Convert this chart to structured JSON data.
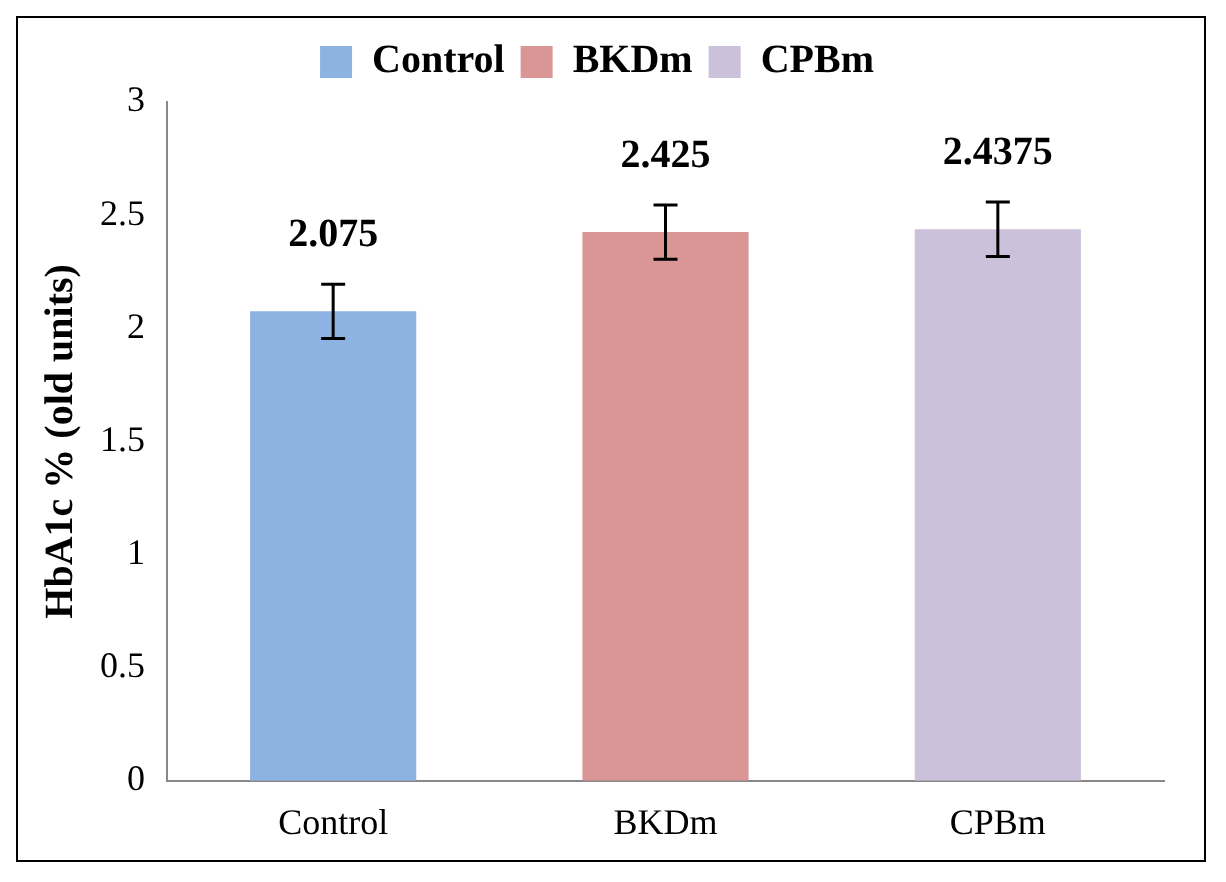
{
  "chart_data": {
    "type": "bar",
    "ylabel": "HbA1c % (old units)",
    "categories": [
      "Control",
      "BKDm",
      "CPBm"
    ],
    "series": [
      {
        "name": "Control",
        "color": "#8db3e2",
        "values": [
          2.075,
          null,
          null
        ],
        "errors": [
          0.12,
          null,
          null
        ]
      },
      {
        "name": "BKDm",
        "color": "#d99694",
        "values": [
          null,
          2.425,
          null
        ],
        "errors": [
          null,
          0.12,
          null
        ]
      },
      {
        "name": "CPBm",
        "color": "#ccc1da",
        "values": [
          null,
          null,
          2.4375
        ],
        "errors": [
          null,
          null,
          0.12
        ]
      }
    ],
    "ylim": [
      0,
      3
    ],
    "yticks": [
      0,
      0.5,
      1,
      1.5,
      2,
      2.5,
      3
    ],
    "grid": false,
    "legend": "top",
    "data_labels": true
  }
}
